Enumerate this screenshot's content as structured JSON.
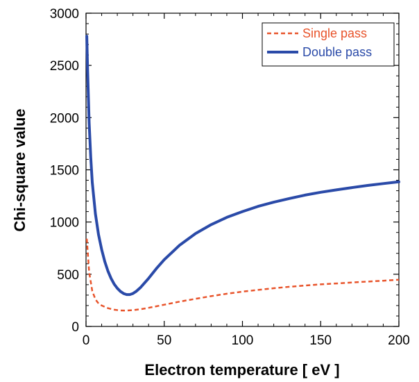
{
  "chart_data": {
    "type": "line",
    "xlabel": "Electron temperature [ eV ]",
    "ylabel": "Chi-square value",
    "xlim": [
      0,
      200
    ],
    "ylim": [
      0,
      3000
    ],
    "x_ticks": [
      0,
      50,
      100,
      150,
      200
    ],
    "y_ticks": [
      0,
      500,
      1000,
      1500,
      2000,
      2500,
      3000
    ],
    "grid": false,
    "legend_position": "top-right",
    "series": [
      {
        "name": "Single pass",
        "color": "#e8532a",
        "style": "dashed",
        "x": [
          0.5,
          2,
          4,
          6,
          8,
          10,
          14,
          18,
          22,
          26,
          30,
          35,
          40,
          50,
          60,
          70,
          80,
          90,
          100,
          110,
          120,
          130,
          140,
          150,
          160,
          170,
          180,
          190,
          200
        ],
        "y": [
          840,
          520,
          340,
          260,
          220,
          200,
          175,
          160,
          153,
          152,
          156,
          165,
          178,
          208,
          238,
          265,
          290,
          313,
          333,
          350,
          366,
          380,
          392,
          403,
          412,
          421,
          430,
          438,
          447
        ]
      },
      {
        "name": "Double pass",
        "color": "#2a4aa8",
        "style": "solid",
        "x": [
          0.5,
          1,
          2,
          3,
          4,
          6,
          8,
          10,
          12,
          14,
          16,
          18,
          20,
          22,
          24,
          26,
          28,
          30,
          32,
          35,
          40,
          45,
          50,
          60,
          70,
          80,
          90,
          100,
          110,
          120,
          130,
          140,
          150,
          160,
          170,
          180,
          190,
          200
        ],
        "y": [
          2780,
          2450,
          1950,
          1620,
          1380,
          1080,
          880,
          735,
          620,
          530,
          460,
          405,
          365,
          335,
          315,
          305,
          305,
          315,
          335,
          375,
          460,
          555,
          640,
          780,
          890,
          975,
          1045,
          1100,
          1150,
          1190,
          1225,
          1258,
          1285,
          1308,
          1330,
          1350,
          1368,
          1385
        ]
      }
    ]
  }
}
